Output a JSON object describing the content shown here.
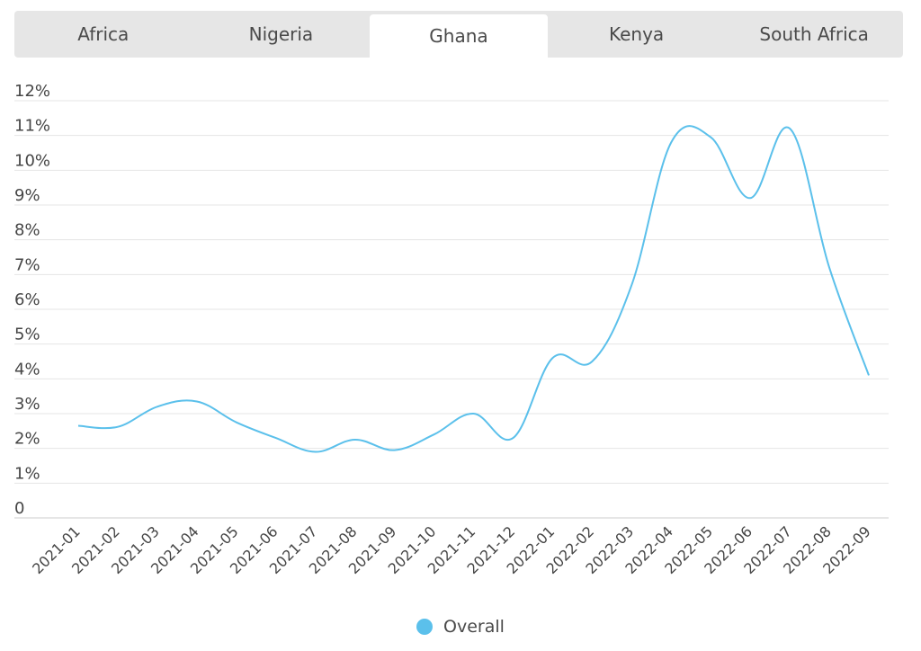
{
  "tabs": [
    {
      "label": "Africa",
      "active": false
    },
    {
      "label": "Nigeria",
      "active": false
    },
    {
      "label": "Ghana",
      "active": true
    },
    {
      "label": "Kenya",
      "active": false
    },
    {
      "label": "South Africa",
      "active": false
    }
  ],
  "colors": {
    "series": "#5bc0eb",
    "grid": "#e4e4e4",
    "tab_bg": "#e6e6e6",
    "tab_active_bg": "#ffffff"
  },
  "chart_data": {
    "type": "line",
    "title": "",
    "xlabel": "",
    "ylabel": "",
    "x": [
      "2021-01",
      "2021-02",
      "2021-03",
      "2021-04",
      "2021-05",
      "2021-06",
      "2021-07",
      "2021-08",
      "2021-09",
      "2021-10",
      "2021-11",
      "2021-12",
      "2022-01",
      "2022-02",
      "2022-03",
      "2022-04",
      "2022-05",
      "2022-06",
      "2022-07",
      "2022-08",
      "2022-09"
    ],
    "series": [
      {
        "name": "Overall",
        "values": [
          2.65,
          2.62,
          3.2,
          3.35,
          2.75,
          2.3,
          1.9,
          2.25,
          1.95,
          2.4,
          3.0,
          2.3,
          4.6,
          4.5,
          6.7,
          10.8,
          10.95,
          9.2,
          11.2,
          7.2,
          4.1
        ]
      }
    ],
    "ylim": [
      0,
      12
    ],
    "y_ticks": [
      0,
      1,
      2,
      3,
      4,
      5,
      6,
      7,
      8,
      9,
      10,
      11,
      12
    ],
    "y_tick_labels": [
      "0",
      "1%",
      "2%",
      "3%",
      "4%",
      "5%",
      "6%",
      "7%",
      "8%",
      "9%",
      "10%",
      "11%",
      "12%"
    ],
    "grid": true,
    "legend_position": "bottom-center"
  }
}
